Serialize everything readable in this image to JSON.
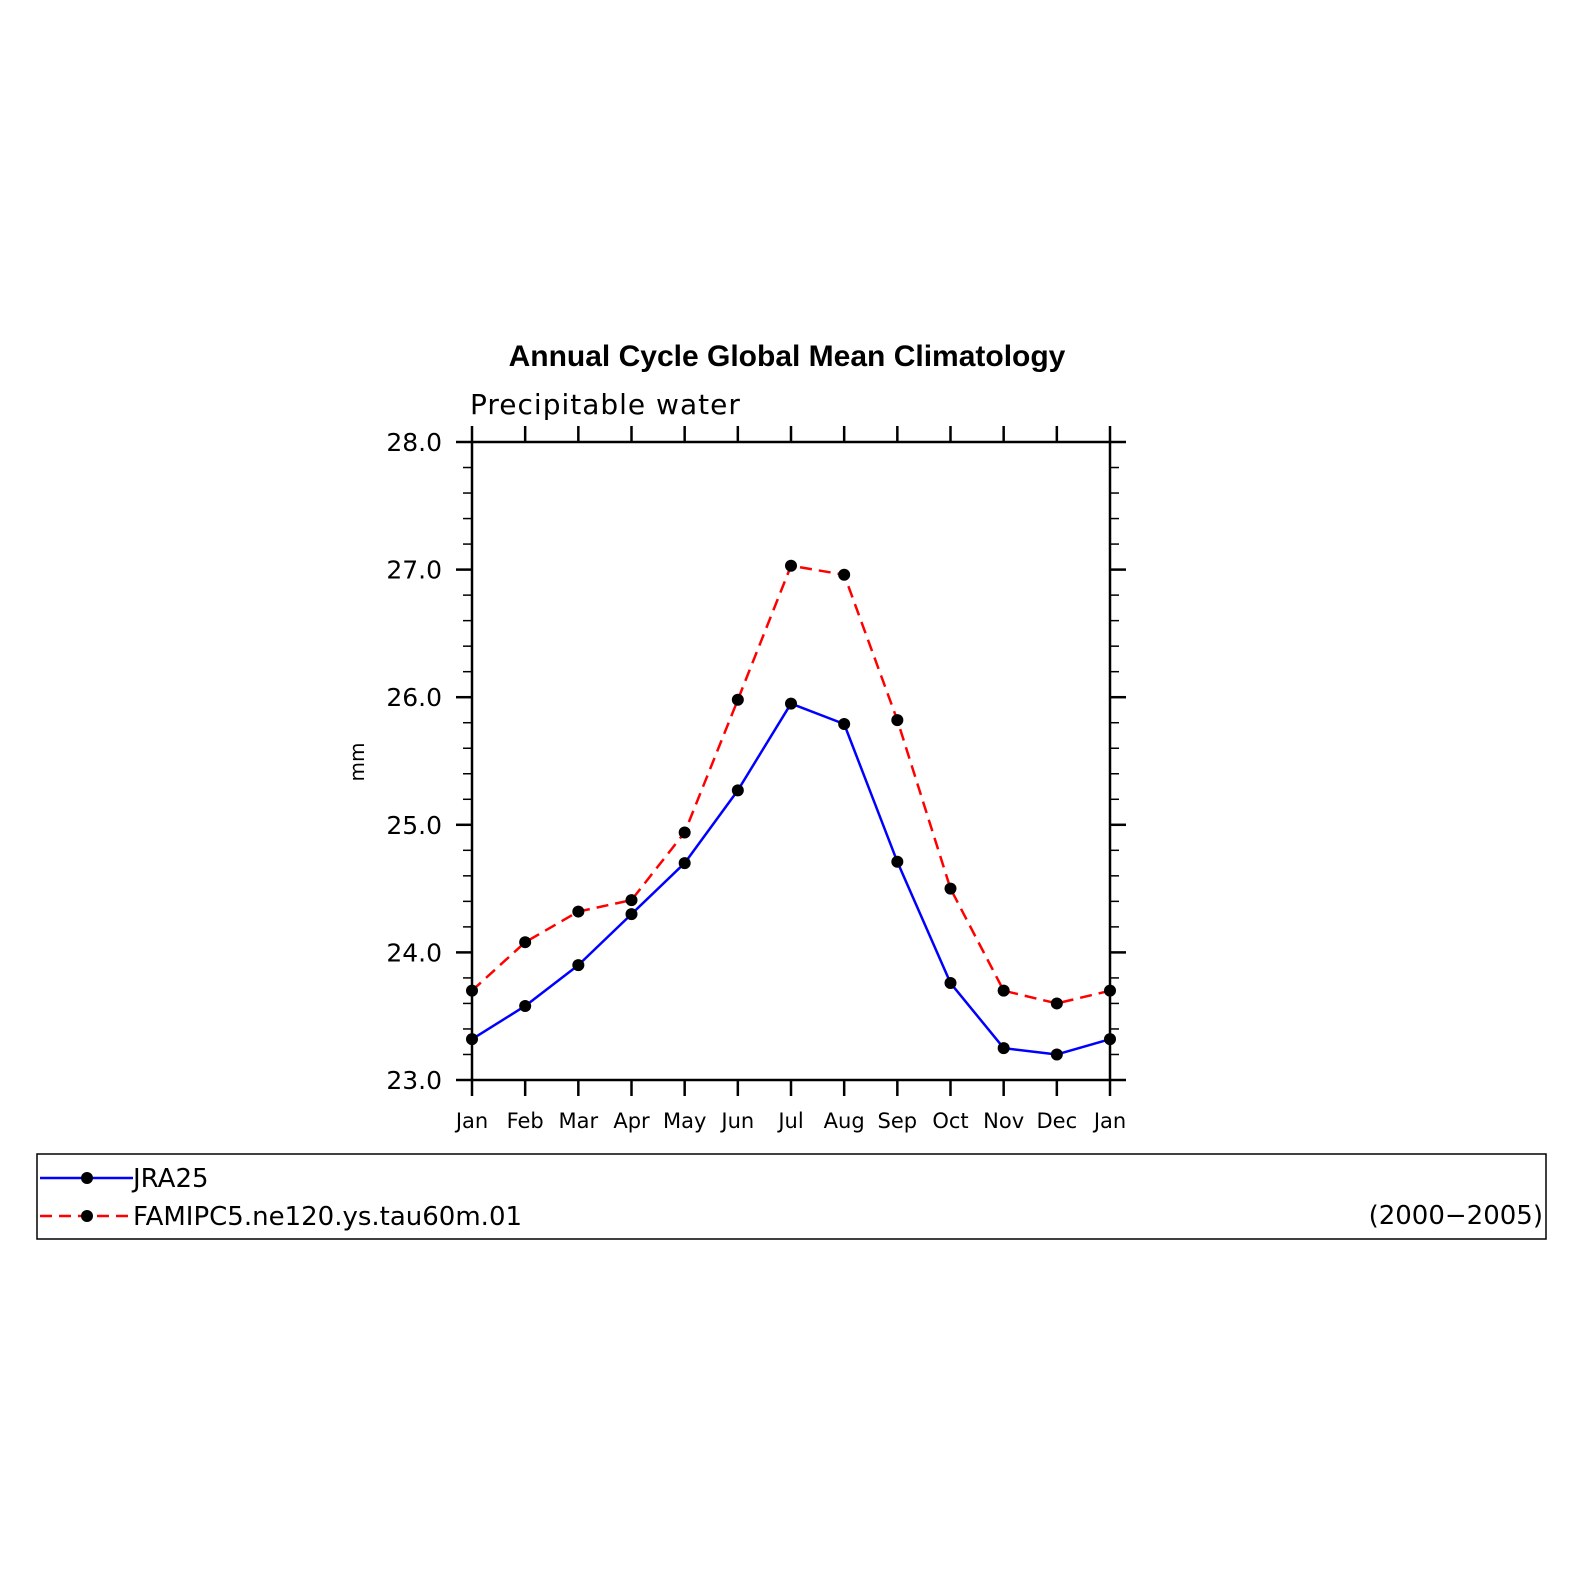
{
  "chart_data": {
    "type": "line",
    "title": "Annual Cycle Global Mean Climatology",
    "subtitle": "Precipitable water",
    "xlabel": "",
    "ylabel": "mm",
    "categories": [
      "Jan",
      "Feb",
      "Mar",
      "Apr",
      "May",
      "Jun",
      "Jul",
      "Aug",
      "Sep",
      "Oct",
      "Nov",
      "Dec",
      "Jan"
    ],
    "ylim": [
      23.0,
      28.0
    ],
    "yticks": [
      "23.0",
      "24.0",
      "25.0",
      "26.0",
      "27.0",
      "28.0"
    ],
    "series": [
      {
        "name": "JRA25",
        "color": "#0000ff",
        "style": "solid",
        "marker": "filled-circle",
        "values": [
          23.32,
          23.58,
          23.9,
          24.3,
          24.7,
          25.27,
          25.95,
          25.79,
          24.71,
          23.76,
          23.25,
          23.2,
          23.32
        ]
      },
      {
        "name": "FAMIPC5.ne120.ys.tau60m.01",
        "color": "#ff0000",
        "style": "dashed",
        "marker": "filled-circle",
        "values": [
          23.7,
          24.08,
          24.32,
          24.41,
          24.94,
          25.98,
          27.03,
          26.96,
          25.82,
          24.5,
          23.7,
          23.6,
          23.7
        ]
      }
    ],
    "grid": false,
    "legend_position": "bottom",
    "period_label": "(2000−2005)"
  }
}
